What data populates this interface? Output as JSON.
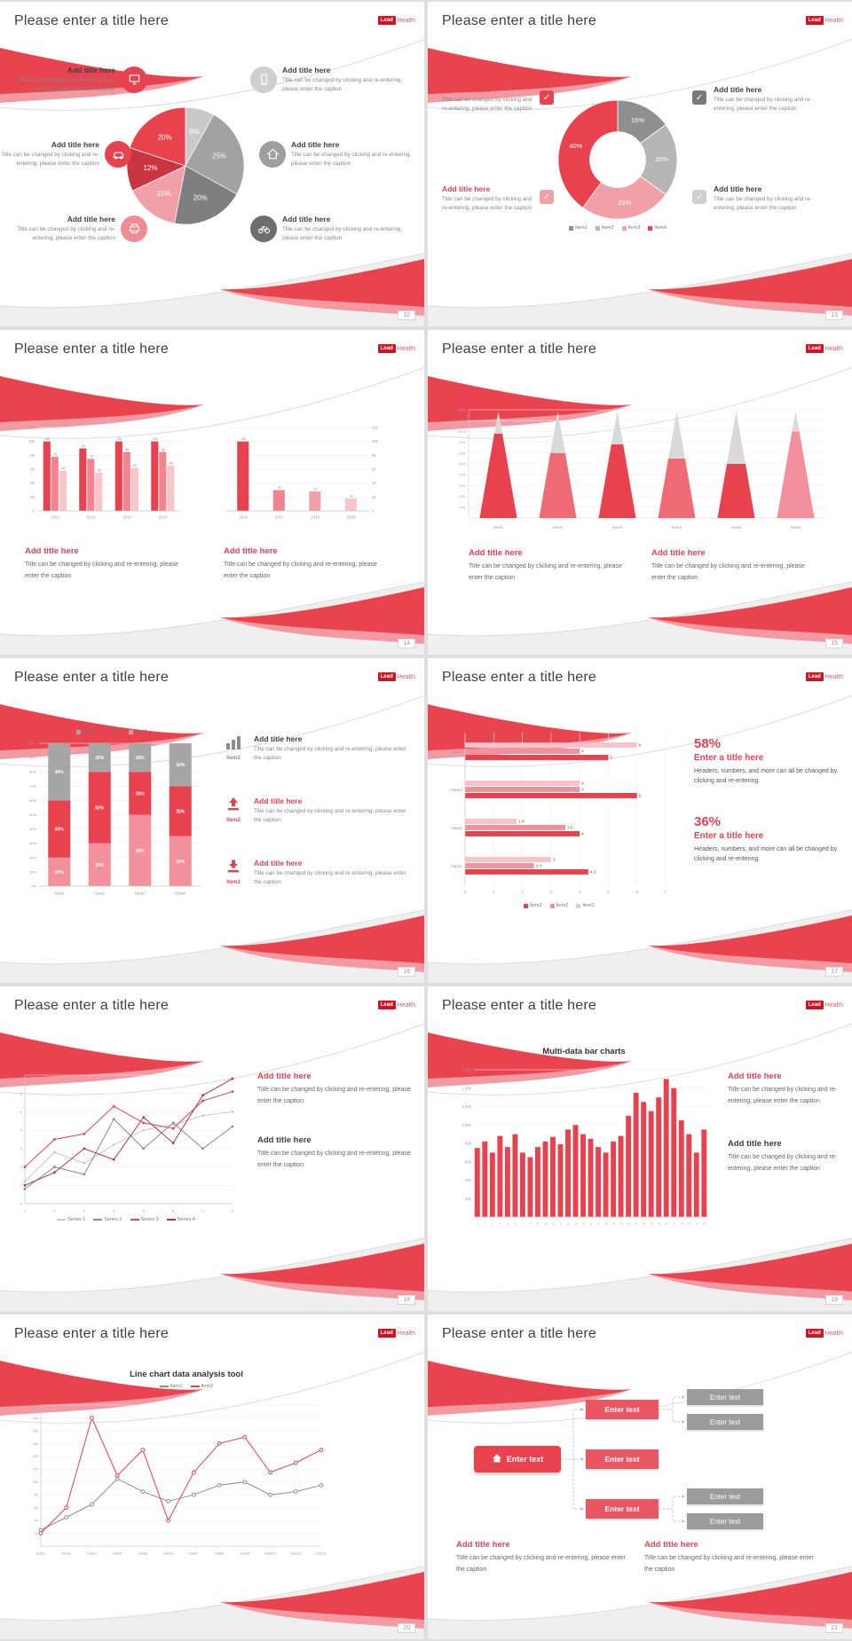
{
  "global": {
    "slide_title": "Please enter a title here",
    "logo": {
      "mark": "Lead",
      "text": "Health"
    },
    "add_title": "Add title here",
    "caption": "Title can be changed by clicking and re-entering, please enter the caption",
    "colors": {
      "red": "#e8424f",
      "dark_red": "#c9353f",
      "pink": "#f2919b",
      "light_pink": "#f7c3c8",
      "gray": "#a6a6a6",
      "dark_gray": "#7f7f7f",
      "text": "#404040"
    }
  },
  "chart_data": [
    {
      "slide": "12",
      "type": "pie",
      "labels": [
        "8%",
        "25%",
        "20%",
        "15%",
        "12%",
        "20%"
      ],
      "values": [
        8,
        25,
        20,
        15,
        12,
        20
      ],
      "colors": [
        "#c9c9c9",
        "#a2a2a2",
        "#7f7f7f",
        "#f2a0a7",
        "#c9353f",
        "#e8424f"
      ]
    },
    {
      "slide": "13",
      "type": "donut",
      "labels": [
        "15%",
        "20%",
        "25%",
        "40%"
      ],
      "values": [
        15,
        20,
        25,
        40
      ],
      "colors": [
        "#8f8f8f",
        "#b5b5b5",
        "#f2a0a7",
        "#e8424f"
      ],
      "legend": [
        {
          "label": "Item1",
          "color": "#8f8f8f"
        },
        {
          "label": "Item2",
          "color": "#b5b5b5"
        },
        {
          "label": "Item3",
          "color": "#f2a0a7"
        },
        {
          "label": "Item4",
          "color": "#e8424f"
        }
      ]
    },
    {
      "slide": "14",
      "type": "bar",
      "axis": "left",
      "categories": [
        "2010",
        "2012",
        "2014",
        "2016"
      ],
      "ymax": 120,
      "yticks": [
        0,
        20,
        40,
        60,
        80,
        100,
        120
      ],
      "show_labels": true,
      "series": [
        {
          "name": "Series 1",
          "color": "#e8424f",
          "values": [
            100,
            90,
            100,
            100
          ]
        },
        {
          "name": "Series 2",
          "color": "#f0858f",
          "values": [
            78,
            75,
            85,
            85
          ]
        },
        {
          "name": "Series 3",
          "color": "#f8c6ca",
          "values": [
            58,
            55,
            62,
            65
          ]
        }
      ]
    },
    {
      "slide": "14",
      "type": "bar",
      "axis": "right",
      "categories": [
        "2016",
        "2017",
        "2018",
        "2019"
      ],
      "ymax": 120,
      "yticks": [
        0,
        20,
        40,
        60,
        80,
        100,
        120
      ],
      "show_labels": true,
      "series": [
        {
          "name": "Series 1",
          "color": "#e8424f",
          "colors": [
            "#e8424f",
            "#f0858f",
            "#f2a0a7",
            "#f8c6ca"
          ],
          "values": [
            100,
            30,
            28,
            18
          ]
        }
      ]
    },
    {
      "slide": "15",
      "type": "cone",
      "categories": [
        "Item1",
        "Item2",
        "Item3",
        "Item4",
        "Item5",
        "Item6"
      ],
      "values": [
        78,
        60,
        68,
        55,
        50,
        80
      ],
      "colors": [
        "#e8424f",
        "#ee6b76",
        "#e8424f",
        "#ee6b76",
        "#e8424f",
        "#f2919b"
      ],
      "tip_color": "#d9d9d9",
      "yticks": [
        10,
        20,
        30,
        40,
        50,
        60,
        70,
        80,
        90,
        100
      ]
    },
    {
      "slide": "16",
      "type": "stacked-bar",
      "categories": [
        "Data1",
        "Data2",
        "Data3",
        "Data4"
      ],
      "series": [
        {
          "name": "Item1",
          "color": "#f2919b",
          "values": [
            20,
            30,
            50,
            35
          ]
        },
        {
          "name": "Item2",
          "color": "#e8424f",
          "values": [
            40,
            50,
            30,
            35
          ]
        },
        {
          "name": "Item3",
          "color": "#a6a6a6",
          "values": [
            40,
            20,
            20,
            30
          ]
        }
      ],
      "legend": [
        {
          "label": "Item3",
          "color": "#a6a6a6"
        },
        {
          "label": "Item2",
          "color": "#e8424f"
        },
        {
          "label": "Item1",
          "color": "#f2919b"
        }
      ]
    },
    {
      "slide": "17",
      "type": "hbar",
      "xmax": 7,
      "xticks": [
        0,
        1,
        2,
        3,
        4,
        5,
        6,
        7
      ],
      "series_colors": [
        "#f7c3c8",
        "#f2919b",
        "#e8424f"
      ],
      "groups": [
        {
          "name": "Data4",
          "values": [
            6,
            4,
            5
          ]
        },
        {
          "name": "Data3",
          "values": [
            4,
            4,
            6
          ]
        },
        {
          "name": "Data2",
          "values": [
            1.8,
            3.5,
            4
          ]
        },
        {
          "name": "Data1",
          "values": [
            3,
            2.4,
            4.3
          ]
        }
      ],
      "legend": [
        {
          "label": "Item3",
          "color": "#e8424f"
        },
        {
          "label": "Item2",
          "color": "#f2919b"
        },
        {
          "label": "Item1",
          "color": "#f7c3c8"
        }
      ]
    },
    {
      "slide": "18",
      "type": "line",
      "x": [
        "1",
        "2",
        "3",
        "4",
        "5",
        "6",
        "7",
        "8"
      ],
      "ymax": 7,
      "yticks": [
        0,
        1,
        2,
        3,
        4,
        5,
        6,
        7
      ],
      "series": [
        {
          "name": "Series 1",
          "color": "#c9c9c9",
          "values": [
            1.2,
            2.8,
            2.2,
            3.2,
            4,
            4.3,
            4.8,
            5
          ]
        },
        {
          "name": "Series 2",
          "color": "#8c8c8c",
          "values": [
            0.8,
            2,
            1.6,
            4.6,
            3,
            4.4,
            3,
            4.2
          ]
        },
        {
          "name": "Series 3",
          "color": "#e8424f",
          "values": [
            2,
            3.5,
            3.8,
            5.3,
            4.4,
            4.1,
            5.6,
            6.1
          ]
        },
        {
          "name": "Series 4",
          "color": "#b23540",
          "values": [
            1,
            1.7,
            3,
            2.4,
            4.7,
            3.3,
            5.9,
            6.8
          ]
        }
      ]
    },
    {
      "slide": "19",
      "type": "bar",
      "axis": "left",
      "title": "Multi-data bar charts",
      "categories": [
        "1",
        "2",
        "3",
        "4",
        "5",
        "6",
        "7",
        "8",
        "9",
        "10",
        "11",
        "12",
        "13",
        "14",
        "15",
        "16",
        "17",
        "18",
        "19",
        "20",
        "21",
        "22",
        "23",
        "24",
        "25",
        "26",
        "27",
        "28",
        "29",
        "30",
        "31"
      ],
      "ymax": 1600,
      "yticks": [
        200,
        400,
        600,
        800,
        1000,
        1200,
        1400,
        1600
      ],
      "ylabels": [
        "200",
        "400",
        "600",
        "800",
        "1,000",
        "1,200",
        "1,400",
        "1,600"
      ],
      "series": [
        {
          "name": "Data",
          "color": "#e8424f",
          "values": [
            750,
            820,
            700,
            880,
            760,
            900,
            700,
            650,
            760,
            820,
            870,
            790,
            950,
            1000,
            900,
            850,
            760,
            700,
            820,
            880,
            1100,
            1350,
            1250,
            1150,
            1300,
            1500,
            1400,
            1050,
            900,
            700,
            950
          ]
        }
      ]
    },
    {
      "slide": "20",
      "type": "line",
      "title": "Line chart data analysis tool",
      "x": [
        "Data1",
        "Data2",
        "Data3",
        "Data4",
        "Data5",
        "Data6",
        "Data7",
        "Data8",
        "Data9",
        "Data10",
        "Data11",
        "Data12"
      ],
      "ymax": 220,
      "yticks": [
        20,
        40,
        60,
        80,
        100,
        120,
        140,
        160,
        180,
        200,
        220
      ],
      "series": [
        {
          "name": "Item1",
          "color": "#8c8c8c",
          "values": [
            25,
            45,
            65,
            105,
            85,
            70,
            80,
            95,
            100,
            80,
            85,
            95
          ]
        },
        {
          "name": "Item2",
          "color": "#e8424f",
          "values": [
            20,
            60,
            200,
            110,
            150,
            40,
            115,
            160,
            170,
            115,
            130,
            150
          ]
        }
      ]
    }
  ],
  "slides": [
    {
      "page": "12",
      "icons": [
        "monitor-icon",
        "mobile-icon",
        "car-icon",
        "home-icon",
        "printer-icon",
        "bicycle-icon"
      ],
      "icon_colors": [
        "#e8424f",
        "#cfcfcf",
        "#e8424f",
        "#9e9e9e",
        "#ef8d96",
        "#6e6e6e"
      ]
    },
    {
      "page": "13",
      "check_glyph": "✓",
      "checkbox_colors": [
        "#e8424f",
        "#f2a0a7",
        "#7a7a7a",
        "#cfcfcf"
      ]
    },
    {
      "page": "14"
    },
    {
      "page": "15"
    },
    {
      "page": "16",
      "items": [
        {
          "tag": "Item3",
          "icon": "bar-chart-icon"
        },
        {
          "tag": "Item2",
          "icon": "upload-icon"
        },
        {
          "tag": "Item1",
          "icon": "download-icon"
        }
      ]
    },
    {
      "page": "17",
      "stats": [
        {
          "pct": "58%",
          "title": "Enter a title here",
          "caption": "Headers, numbers, and more can all be changed by clicking and re-entering."
        },
        {
          "pct": "36%",
          "title": "Enter a title here",
          "caption": "Headers, numbers, and more can all be changed by clicking and re-entering."
        }
      ]
    },
    {
      "page": "18"
    },
    {
      "page": "19"
    },
    {
      "page": "20"
    },
    {
      "page": "21",
      "node_label": "Enter text"
    }
  ]
}
